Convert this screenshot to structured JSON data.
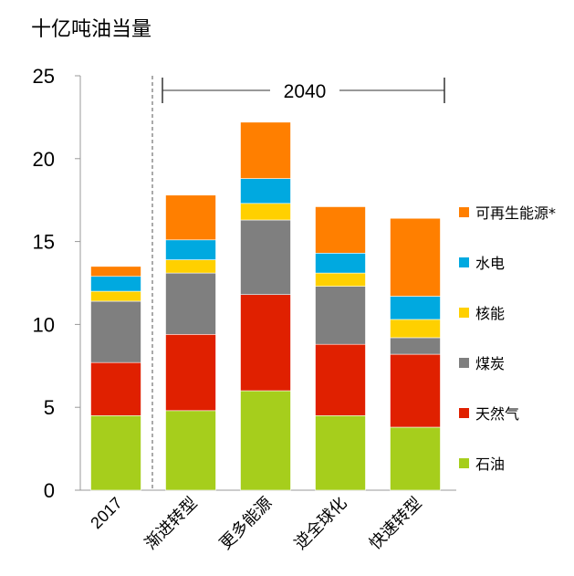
{
  "chart_data": {
    "type": "bar",
    "stacked": true,
    "unit_label": "十亿吨油当量",
    "period_label": "2040",
    "categories": [
      "2017",
      "渐进转型",
      "更多能源",
      "逆全球化",
      "快速转型"
    ],
    "series": [
      {
        "name": "石油",
        "color": "#a6ce1c",
        "values": [
          4.5,
          4.8,
          6.0,
          4.5,
          3.8
        ]
      },
      {
        "name": "天然气",
        "color": "#e02000",
        "values": [
          3.2,
          4.6,
          5.8,
          4.3,
          4.4
        ]
      },
      {
        "name": "煤炭",
        "color": "#7f7f7f",
        "values": [
          3.7,
          3.7,
          4.5,
          3.5,
          1.0
        ]
      },
      {
        "name": "核能",
        "color": "#ffd000",
        "values": [
          0.6,
          0.8,
          1.0,
          0.8,
          1.1
        ]
      },
      {
        "name": "水电",
        "color": "#00a9e0",
        "values": [
          0.9,
          1.2,
          1.5,
          1.2,
          1.4
        ]
      },
      {
        "name": "可再生能源*",
        "color": "#ff7f00",
        "values": [
          0.6,
          2.7,
          3.4,
          2.8,
          4.7
        ]
      }
    ],
    "ylim": [
      0,
      25
    ],
    "yticks": [
      0,
      5,
      10,
      15,
      20,
      25
    ],
    "legend_position": "right",
    "grid": false
  }
}
